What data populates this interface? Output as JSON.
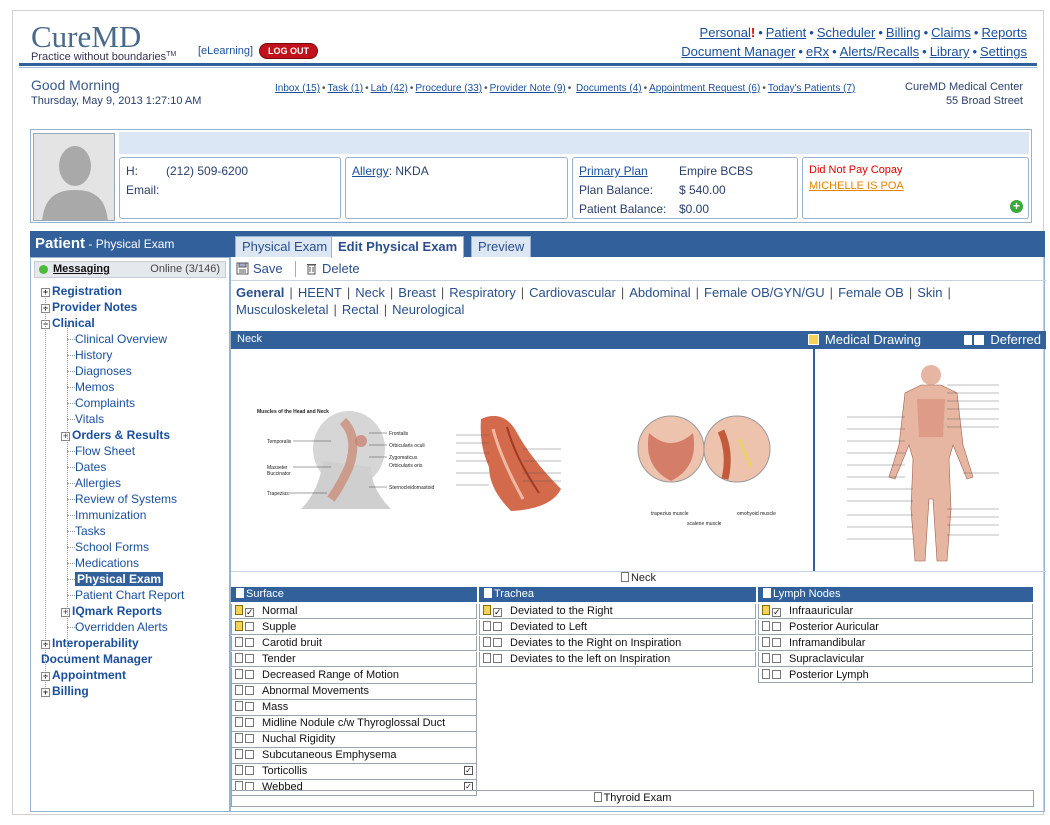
{
  "header": {
    "logo_word": "CureMD",
    "logo_tagline": "Practice without boundaries",
    "logo_tm": "TM",
    "elearning": "[eLearning]",
    "logout": "LOG OUT",
    "nav_row1": [
      "Personal",
      "Patient",
      "Scheduler",
      "Billing",
      "Claims",
      "Reports"
    ],
    "nav_row2": [
      "Document Manager",
      "eRx",
      "Alerts/Recalls",
      "Library",
      "Settings"
    ],
    "personal_alert": "!"
  },
  "greeting": {
    "title": "Good Morning",
    "datetime": "Thursday, May 9, 2013 1:27:10 AM"
  },
  "inbox_links": [
    "Inbox (15)",
    "Task (1)",
    "Lab (42)",
    "Procedure (33)",
    "Provider Note (9)",
    "Documents (4)",
    "Appointment Request (6)",
    "Today's Patients (7)"
  ],
  "center": {
    "name": "CureMD Medical Center",
    "address": "55 Broad Street"
  },
  "patient": {
    "phone_label": "H:",
    "phone": "(212) 509-6200",
    "email_label": "Email:",
    "allergy_label": "Allergy",
    "allergy_value": ": NKDA",
    "primary_plan_label": "Primary Plan",
    "primary_plan_value": "Empire BCBS",
    "plan_balance_label": "Plan Balance:",
    "plan_balance_value": "$ 540.00",
    "patient_balance_label": "Patient Balance:",
    "patient_balance_value": "$0.00",
    "alert1": "Did Not Pay Copay",
    "alert2": "MICHELLE IS POA"
  },
  "left_panel": {
    "title": "Patient",
    "subtitle": "- Physical Exam",
    "messaging": "Messaging",
    "online": "Online (3/146)",
    "tree": [
      {
        "label": "Registration",
        "level": 0,
        "expander": "+"
      },
      {
        "label": "Provider Notes",
        "level": 0,
        "expander": "+"
      },
      {
        "label": "Clinical",
        "level": 0,
        "expander": "-"
      },
      {
        "label": "Clinical Overview",
        "level": 1
      },
      {
        "label": "History",
        "level": 1
      },
      {
        "label": "Diagnoses",
        "level": 1
      },
      {
        "label": "Memos",
        "level": 1
      },
      {
        "label": "Complaints",
        "level": 1
      },
      {
        "label": "Vitals",
        "level": 1
      },
      {
        "label": "Orders & Results",
        "level": 1,
        "expander": "+",
        "bold": true
      },
      {
        "label": "Flow Sheet",
        "level": 1
      },
      {
        "label": "Dates",
        "level": 1
      },
      {
        "label": "Allergies",
        "level": 1
      },
      {
        "label": "Review of Systems",
        "level": 1
      },
      {
        "label": "Immunization",
        "level": 1
      },
      {
        "label": "Tasks",
        "level": 1
      },
      {
        "label": "School Forms",
        "level": 1
      },
      {
        "label": "Medications",
        "level": 1
      },
      {
        "label": "Physical Exam",
        "level": 1,
        "selected": true
      },
      {
        "label": "Patient Chart Report",
        "level": 1
      },
      {
        "label": "IQmark Reports",
        "level": 1,
        "expander": "+",
        "bold": true
      },
      {
        "label": "Overridden Alerts",
        "level": 1
      },
      {
        "label": "Interoperability",
        "level": 0,
        "expander": "+"
      },
      {
        "label": "Document Manager",
        "level": 0
      },
      {
        "label": "Appointment",
        "level": 0,
        "expander": "+"
      },
      {
        "label": "Billing",
        "level": 0,
        "expander": "+"
      }
    ]
  },
  "tabs": [
    "Physical Exam",
    "Edit Physical Exam",
    "Preview"
  ],
  "toolbar": {
    "save": "Save",
    "delete": "Delete"
  },
  "sections_row1": [
    "General",
    "HEENT",
    "Neck",
    "Breast",
    "Respiratory",
    "Cardiovascular",
    "Abdominal",
    "Female OB/GYN/GU",
    "Female OB",
    "Skin"
  ],
  "sections_row2": [
    "Musculoskeletal",
    "Rectal",
    "Neurological"
  ],
  "neck_bar": {
    "title": "Neck",
    "medical_drawing": "Medical Drawing",
    "deferred": "Deferred"
  },
  "image_labels": {
    "diagram_title": "Muscles of the Head and Neck",
    "left_labels": [
      "Temporalis",
      "Masseter",
      "Buccinator",
      "Trapezius"
    ],
    "right_labels": [
      "Frontalis",
      "Orbicularis oculi",
      "Zygomaticus",
      "Orbicularis oris",
      "Sternocleidomastoid"
    ],
    "trapezius": "trapezius muscle",
    "omohyoid": "omohyoid muscle",
    "scalene": "scalene muscle"
  },
  "neck_label": "Neck",
  "columns": [
    {
      "title": "Surface",
      "items": [
        {
          "label": "Normal",
          "checked": true,
          "note": "yellow"
        },
        {
          "label": "Supple",
          "checked": false,
          "note": "yellow"
        },
        {
          "label": "Carotid bruit",
          "checked": false,
          "note": "plain"
        },
        {
          "label": "Tender",
          "checked": false,
          "note": "plain"
        },
        {
          "label": "Decreased Range of Motion",
          "checked": false,
          "note": "plain"
        },
        {
          "label": "Abnormal Movements",
          "checked": false,
          "note": "plain"
        },
        {
          "label": "Mass",
          "checked": false,
          "note": "plain"
        },
        {
          "label": "Midline Nodule c/w Thyroglossal Duct",
          "checked": false,
          "note": "plain"
        },
        {
          "label": "Nuchal Rigidity",
          "checked": false,
          "note": "plain"
        },
        {
          "label": "Subcutaneous Emphysema",
          "checked": false,
          "note": "plain"
        },
        {
          "label": "Torticollis",
          "checked": false,
          "note": "plain",
          "side_check": true
        },
        {
          "label": "Webbed",
          "checked": false,
          "note": "plain",
          "side_check": true
        }
      ]
    },
    {
      "title": "Trachea",
      "items": [
        {
          "label": "Deviated to the Right",
          "checked": true,
          "note": "yellow"
        },
        {
          "label": "Deviated to Left",
          "checked": false,
          "note": "plain"
        },
        {
          "label": "Deviates to the Right on Inspiration",
          "checked": false,
          "note": "plain"
        },
        {
          "label": "Deviates to the left on Inspiration",
          "checked": false,
          "note": "plain"
        }
      ]
    },
    {
      "title": "Lymph Nodes",
      "items": [
        {
          "label": "Infraauricular",
          "checked": true,
          "note": "yellow"
        },
        {
          "label": "Posterior Auricular",
          "checked": false,
          "note": "plain"
        },
        {
          "label": "Inframandibular",
          "checked": false,
          "note": "plain"
        },
        {
          "label": "Supraclavicular",
          "checked": false,
          "note": "plain"
        },
        {
          "label": "Posterior Lymph",
          "checked": false,
          "note": "plain"
        }
      ]
    }
  ],
  "thyroid_label": "Thyroid Exam",
  "colors": {
    "primary": "#31609a",
    "light": "#dbe7f4",
    "link": "#1a4f9c",
    "alert": "#d00000",
    "orange": "#e28400"
  }
}
